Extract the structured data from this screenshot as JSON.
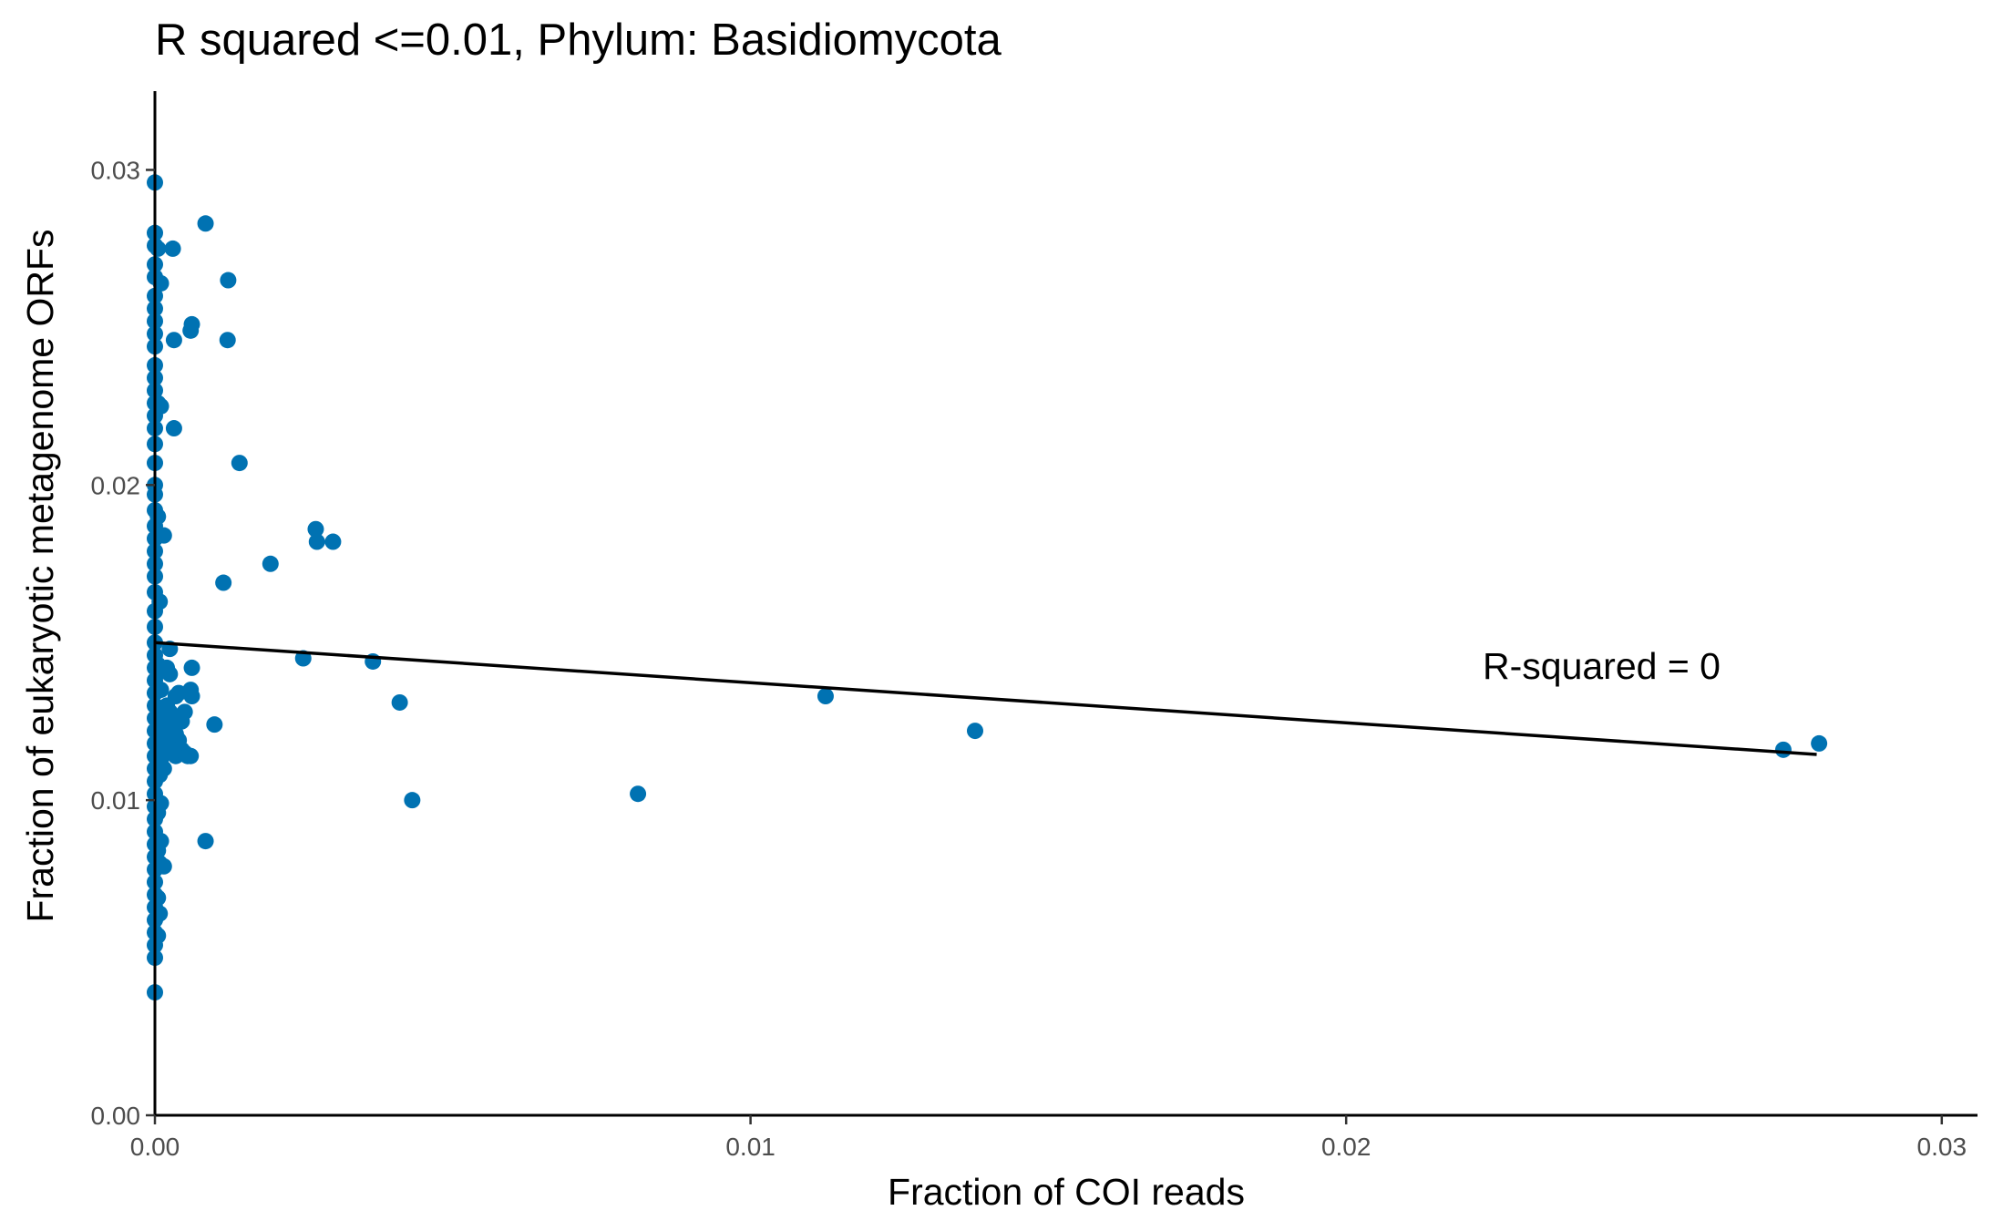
{
  "chart_data": {
    "type": "scatter",
    "title": "R squared <=0.01, Phylum:  Basidiomycota",
    "xlabel": "Fraction of COI reads",
    "ylabel": "Fraction of eukaryotic metagenome ORFs",
    "xlim": [
      0,
      0.0306
    ],
    "ylim": [
      0,
      0.0325
    ],
    "x_ticks": [
      0.0,
      0.01,
      0.02,
      0.03
    ],
    "x_tick_labels": [
      "0.00",
      "0.01",
      "0.02",
      "0.03"
    ],
    "y_ticks": [
      0.0,
      0.01,
      0.02,
      0.03
    ],
    "y_tick_labels": [
      "0.00",
      "0.01",
      "0.02",
      "0.03"
    ],
    "grid": false,
    "point_color": "#0072B2",
    "line_color": "#000000",
    "annotation": "R-squared =  0",
    "fit_line": [
      [
        0.0,
        0.015
      ],
      [
        0.0279,
        0.01145
      ]
    ],
    "points": [
      [
        0.0,
        0.0296
      ],
      [
        0.0,
        0.028
      ],
      [
        0.0,
        0.0276
      ],
      [
        0.0,
        0.027
      ],
      [
        0.0,
        0.0266
      ],
      [
        0.0,
        0.026
      ],
      [
        0.0,
        0.0256
      ],
      [
        0.0,
        0.0252
      ],
      [
        0.0,
        0.0248
      ],
      [
        0.0,
        0.0244
      ],
      [
        0.0,
        0.0238
      ],
      [
        0.0,
        0.0234
      ],
      [
        0.0,
        0.023
      ],
      [
        0.0,
        0.0226
      ],
      [
        0.0,
        0.0222
      ],
      [
        0.0,
        0.0218
      ],
      [
        0.0,
        0.0213
      ],
      [
        0.0,
        0.0207
      ],
      [
        0.0,
        0.02
      ],
      [
        0.0,
        0.0197
      ],
      [
        0.0,
        0.0192
      ],
      [
        0.0,
        0.0187
      ],
      [
        0.0,
        0.0183
      ],
      [
        0.0,
        0.0179
      ],
      [
        0.0,
        0.0175
      ],
      [
        0.0,
        0.0171
      ],
      [
        0.0,
        0.0166
      ],
      [
        0.0,
        0.016
      ],
      [
        0.0,
        0.0155
      ],
      [
        0.0,
        0.015
      ],
      [
        0.0,
        0.0146
      ],
      [
        0.0,
        0.0142
      ],
      [
        0.0,
        0.0138
      ],
      [
        0.0,
        0.0134
      ],
      [
        0.0,
        0.013
      ],
      [
        0.0,
        0.0126
      ],
      [
        0.0,
        0.0122
      ],
      [
        0.0,
        0.0118
      ],
      [
        0.0,
        0.0114
      ],
      [
        0.0,
        0.011
      ],
      [
        0.0,
        0.0106
      ],
      [
        0.0,
        0.0102
      ],
      [
        0.0,
        0.0098
      ],
      [
        0.0,
        0.0094
      ],
      [
        0.0,
        0.009
      ],
      [
        0.0,
        0.0086
      ],
      [
        0.0,
        0.0082
      ],
      [
        0.0,
        0.0078
      ],
      [
        0.0,
        0.0074
      ],
      [
        0.0,
        0.007
      ],
      [
        0.0,
        0.0066
      ],
      [
        0.0,
        0.0062
      ],
      [
        0.0,
        0.0058
      ],
      [
        0.0,
        0.0054
      ],
      [
        0.0,
        0.005
      ],
      [
        0.0,
        0.0039
      ],
      [
        5e-05,
        0.0275
      ],
      [
        5e-05,
        0.0226
      ],
      [
        5e-05,
        0.019
      ],
      [
        5e-05,
        0.0143
      ],
      [
        5e-05,
        0.0118
      ],
      [
        5e-05,
        0.0112
      ],
      [
        5e-05,
        0.0096
      ],
      [
        5e-05,
        0.0084
      ],
      [
        5e-05,
        0.0069
      ],
      [
        5e-05,
        0.0057
      ],
      [
        8e-05,
        0.0163
      ],
      [
        8e-05,
        0.0125
      ],
      [
        8e-05,
        0.0108
      ],
      [
        8e-05,
        0.008
      ],
      [
        8e-05,
        0.0064
      ],
      [
        0.0001,
        0.0264
      ],
      [
        0.0001,
        0.0225
      ],
      [
        0.0001,
        0.0135
      ],
      [
        0.0001,
        0.0117
      ],
      [
        0.0001,
        0.0113
      ],
      [
        0.0001,
        0.0099
      ],
      [
        0.0001,
        0.0087
      ],
      [
        0.00015,
        0.0184
      ],
      [
        0.00015,
        0.0141
      ],
      [
        0.00015,
        0.0127
      ],
      [
        0.00015,
        0.0115
      ],
      [
        0.00015,
        0.011
      ],
      [
        0.00015,
        0.0079
      ],
      [
        0.0002,
        0.0142
      ],
      [
        0.0002,
        0.013
      ],
      [
        0.0002,
        0.0122
      ],
      [
        0.0002,
        0.0119
      ],
      [
        0.00025,
        0.0148
      ],
      [
        0.00025,
        0.014
      ],
      [
        0.00025,
        0.0128
      ],
      [
        0.00025,
        0.0116
      ],
      [
        0.0003,
        0.0275
      ],
      [
        0.0003,
        0.0124
      ],
      [
        0.0003,
        0.0117
      ],
      [
        0.00035,
        0.0133
      ],
      [
        0.00035,
        0.0121
      ],
      [
        0.00035,
        0.0114
      ],
      [
        0.00032,
        0.0246
      ],
      [
        0.00032,
        0.0218
      ],
      [
        0.0004,
        0.0134
      ],
      [
        0.0004,
        0.0119
      ],
      [
        0.0004,
        0.0116
      ],
      [
        0.00045,
        0.0125
      ],
      [
        0.00045,
        0.0116
      ],
      [
        0.0005,
        0.0128
      ],
      [
        0.0005,
        0.0115
      ],
      [
        0.00055,
        0.0114
      ],
      [
        0.0006,
        0.0135
      ],
      [
        0.0006,
        0.0249
      ],
      [
        0.0006,
        0.0114
      ],
      [
        0.00062,
        0.0251
      ],
      [
        0.00062,
        0.0142
      ],
      [
        0.00062,
        0.0133
      ],
      [
        0.00085,
        0.0283
      ],
      [
        0.00085,
        0.0087
      ],
      [
        0.001,
        0.0124
      ],
      [
        0.00115,
        0.0169
      ],
      [
        0.00122,
        0.0246
      ],
      [
        0.00123,
        0.0265
      ],
      [
        0.00142,
        0.0207
      ],
      [
        0.00194,
        0.0175
      ],
      [
        0.00249,
        0.0145
      ],
      [
        0.0027,
        0.0186
      ],
      [
        0.00272,
        0.0182
      ],
      [
        0.00299,
        0.0182
      ],
      [
        0.00366,
        0.0144
      ],
      [
        0.00411,
        0.0131
      ],
      [
        0.00432,
        0.01
      ],
      [
        0.00811,
        0.0102
      ],
      [
        0.01126,
        0.0133
      ],
      [
        0.01377,
        0.0122
      ],
      [
        0.02734,
        0.0116
      ],
      [
        0.02794,
        0.0118
      ]
    ]
  }
}
